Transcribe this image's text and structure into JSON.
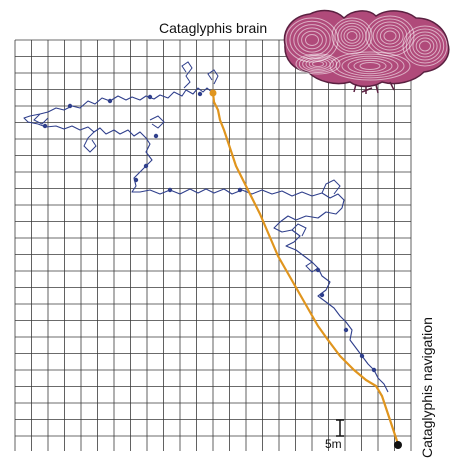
{
  "figure": {
    "brain_label": "Cataglyphis brain",
    "side_label": "Cataglyphis navigation",
    "scale_label": "5m"
  },
  "colors": {
    "grid": "#3a3a3a",
    "outbound_path": "#2f3f8c",
    "homing_path": "#e0951e",
    "end_point": "#111111",
    "brain_fill": "#b04a7a",
    "brain_stroke": "#5a2040"
  },
  "icons": {
    "brain": "ant-brain-illustration"
  }
}
